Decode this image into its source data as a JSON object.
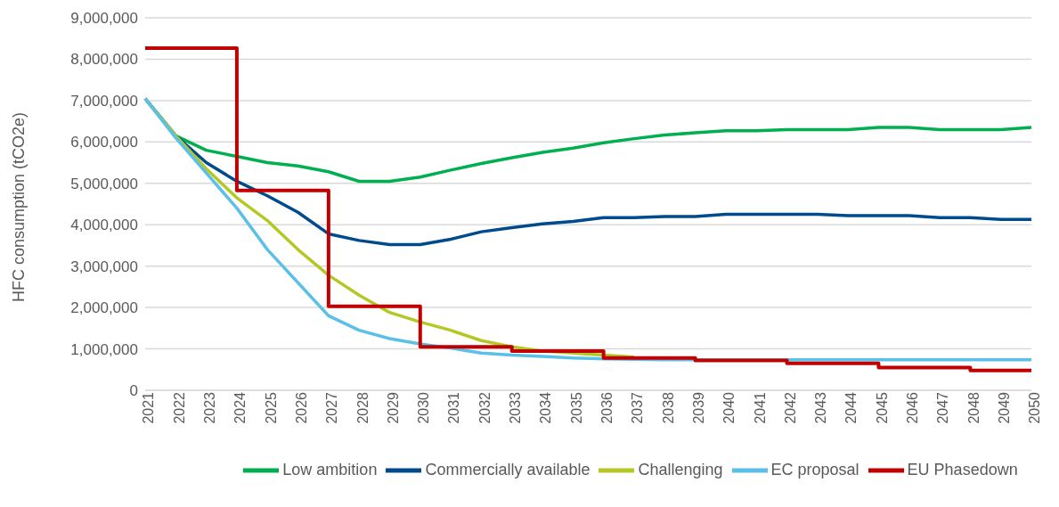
{
  "chart_data": {
    "type": "line",
    "ylabel": "HFC consumption (tCO2e)",
    "categories": [
      "2021",
      "2022",
      "2023",
      "2024",
      "2025",
      "2026",
      "2027",
      "2028",
      "2029",
      "2030",
      "2031",
      "2032",
      "2033",
      "2034",
      "2035",
      "2036",
      "2037",
      "2038",
      "2039",
      "2040",
      "2041",
      "2042",
      "2043",
      "2044",
      "2045",
      "2046",
      "2047",
      "2048",
      "2049",
      "2050"
    ],
    "ylim": [
      0,
      9000000
    ],
    "yticks": [
      {
        "value": 0,
        "label": "0"
      },
      {
        "value": 1000000,
        "label": "1,000,000"
      },
      {
        "value": 2000000,
        "label": "2,000,000"
      },
      {
        "value": 3000000,
        "label": "3,000,000"
      },
      {
        "value": 4000000,
        "label": "4,000,000"
      },
      {
        "value": 5000000,
        "label": "5,000,000"
      },
      {
        "value": 6000000,
        "label": "6,000,000"
      },
      {
        "value": 7000000,
        "label": "7,000,000"
      },
      {
        "value": 8000000,
        "label": "8,000,000"
      },
      {
        "value": 9000000,
        "label": "9,000,000"
      }
    ],
    "grid": "y",
    "legend": "bottom",
    "marker": "none",
    "series": [
      {
        "name": "Low ambition",
        "color": "#00b050",
        "values": [
          7050000,
          6150000,
          5800000,
          5650000,
          5500000,
          5420000,
          5280000,
          5050000,
          5050000,
          5150000,
          5320000,
          5480000,
          5620000,
          5750000,
          5850000,
          5980000,
          6080000,
          6170000,
          6220000,
          6270000,
          6270000,
          6300000,
          6300000,
          6300000,
          6350000,
          6350000,
          6300000,
          6300000,
          6300000,
          6350000
        ]
      },
      {
        "name": "Commercially available",
        "color": "#004b8d",
        "values": [
          7050000,
          6150000,
          5500000,
          5050000,
          4700000,
          4300000,
          3780000,
          3620000,
          3520000,
          3520000,
          3650000,
          3830000,
          3930000,
          4020000,
          4080000,
          4170000,
          4170000,
          4200000,
          4200000,
          4250000,
          4250000,
          4250000,
          4250000,
          4220000,
          4220000,
          4220000,
          4170000,
          4170000,
          4130000,
          4130000
        ]
      },
      {
        "name": "Challenging",
        "color": "#b5c724",
        "values": [
          7050000,
          6150000,
          5350000,
          4650000,
          4100000,
          3400000,
          2780000,
          2300000,
          1880000,
          1650000,
          1450000,
          1200000,
          1050000,
          950000,
          900000,
          850000,
          800000,
          null,
          null,
          null,
          null,
          null,
          null,
          null,
          null,
          null,
          null,
          null,
          null,
          null
        ]
      },
      {
        "name": "EC proposal",
        "color": "#5bc0e8",
        "values": [
          7050000,
          6100000,
          5250000,
          4400000,
          3400000,
          2600000,
          1800000,
          1450000,
          1250000,
          1120000,
          1020000,
          900000,
          850000,
          820000,
          780000,
          760000,
          750000,
          740000,
          740000,
          740000,
          740000,
          740000,
          740000,
          740000,
          740000,
          740000,
          740000,
          740000,
          740000,
          740000
        ]
      },
      {
        "name": "EU Phasedown",
        "type": "step",
        "color": "#c00000",
        "values": [
          8270000,
          8270000,
          8270000,
          4830000,
          4830000,
          4830000,
          2030000,
          2030000,
          2030000,
          1050000,
          1050000,
          1050000,
          950000,
          950000,
          950000,
          780000,
          780000,
          780000,
          720000,
          720000,
          720000,
          650000,
          650000,
          650000,
          550000,
          550000,
          550000,
          480000,
          480000,
          480000
        ]
      }
    ]
  }
}
